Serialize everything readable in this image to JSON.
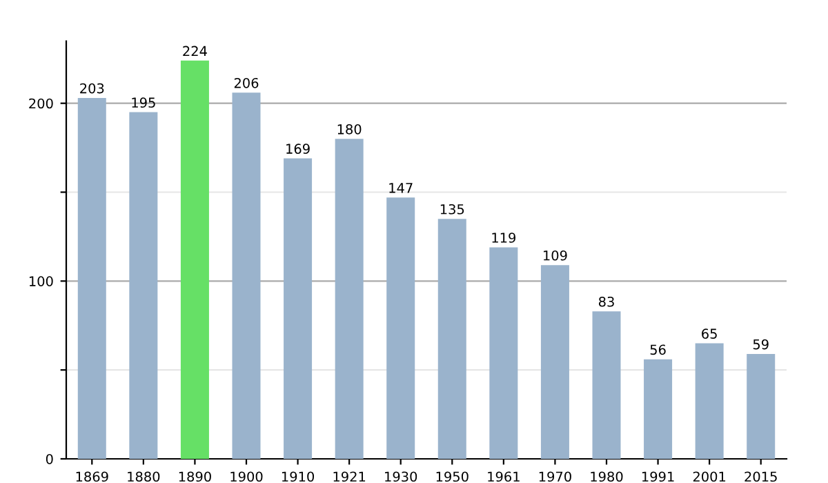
{
  "chart_data": {
    "type": "bar",
    "categories": [
      "1869",
      "1880",
      "1890",
      "1900",
      "1910",
      "1921",
      "1930",
      "1950",
      "1961",
      "1970",
      "1980",
      "1991",
      "2001",
      "2015"
    ],
    "values": [
      203,
      195,
      224,
      206,
      169,
      180,
      147,
      135,
      119,
      109,
      83,
      56,
      65,
      59
    ],
    "colors": [
      "#9ab3cc",
      "#9ab3cc",
      "#66e066",
      "#9ab3cc",
      "#9ab3cc",
      "#9ab3cc",
      "#9ab3cc",
      "#9ab3cc",
      "#9ab3cc",
      "#9ab3cc",
      "#9ab3cc",
      "#9ab3cc",
      "#9ab3cc",
      "#9ab3cc"
    ],
    "ylim": [
      0,
      235
    ],
    "yticks": [
      0,
      {
        "value": 50,
        "label": null
      },
      100,
      {
        "value": 150,
        "label": null
      },
      200
    ],
    "grid": "y",
    "data_labels": true
  }
}
